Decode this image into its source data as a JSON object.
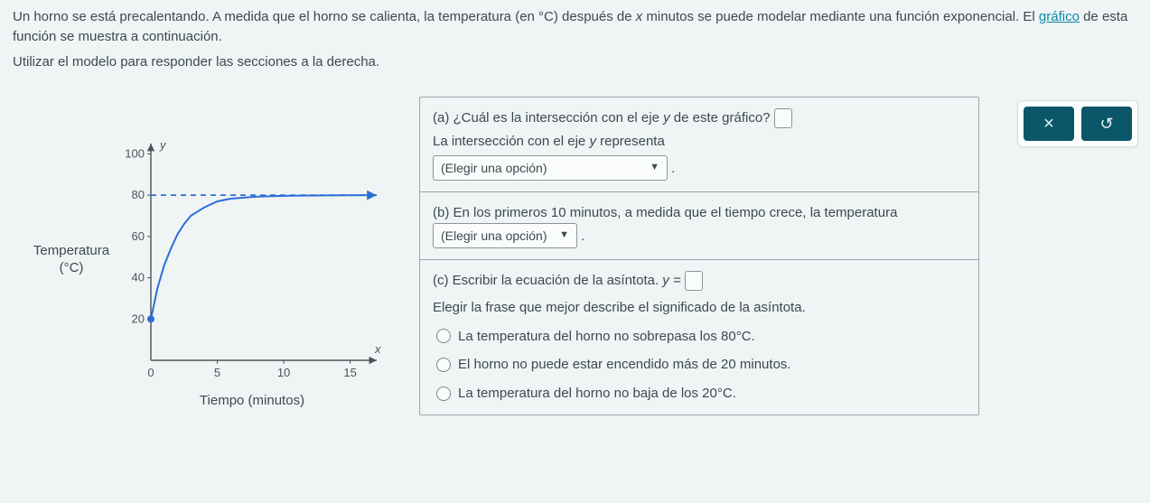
{
  "intro": {
    "line1_pre": "Un horno se está precalentando. A medida que el horno se calienta, la temperatura (en °C) después de ",
    "varx": "x",
    "line1_post": " minutos se puede modelar mediante una función exponencial. El ",
    "link_text": "gráfico",
    "line1_end": " de esta función se muestra a continuación.",
    "line2": "Utilizar el modelo para responder las secciones a la derecha."
  },
  "chart": {
    "ylabel_line1": "Temperatura",
    "ylabel_line2": "(°C)",
    "xlabel": "Tiempo (minutos)",
    "y_axis_letter": "y",
    "x_axis_letter": "x",
    "xlim": [
      0,
      17
    ],
    "ylim": [
      0,
      105
    ],
    "xticks": [
      0,
      5,
      10,
      15
    ],
    "yticks": [
      20,
      40,
      60,
      80,
      100
    ],
    "asymptote_y": 80,
    "asymptote_color": "#2b6fd6",
    "asymptote_dash": "6 5",
    "axis_color": "#4a5558",
    "tick_fontsize": 13,
    "curve_color": "#2b6fd6",
    "curve_width": 2,
    "start_marker_color": "#2b6fd6",
    "curve_points": [
      [
        0,
        20
      ],
      [
        0.5,
        35
      ],
      [
        1,
        46
      ],
      [
        1.5,
        54
      ],
      [
        2,
        61
      ],
      [
        2.5,
        66
      ],
      [
        3,
        70
      ],
      [
        4,
        74
      ],
      [
        5,
        77
      ],
      [
        6,
        78.3
      ],
      [
        8,
        79.3
      ],
      [
        10,
        79.7
      ],
      [
        12,
        79.85
      ],
      [
        15,
        79.95
      ],
      [
        17,
        80
      ]
    ]
  },
  "qa": {
    "a": {
      "q": "(a) ¿Cuál es la intersección con el eje ",
      "yvar": "y",
      "q_end": " de este gráfico? ",
      "sub_pre": "La intersección con el eje ",
      "sub_post": " representa",
      "dd_label": "(Elegir una opción)"
    },
    "b": {
      "text_pre": "(b) En los primeros 10 minutos, a medida que el tiempo crece, la temperatura ",
      "dd_label": "(Elegir una opción)"
    },
    "c": {
      "line1_pre": "(c) Escribir la ecuación de la asíntota. ",
      "eq_lhs": "y = ",
      "line2": "Elegir la frase que mejor describe el significado de la asíntota.",
      "opt1": "La temperatura del horno no sobrepasa los 80°C.",
      "opt2": "El horno no puede estar encendido más de 20 minutos.",
      "opt3": "La temperatura del horno no baja de los 20°C."
    }
  },
  "buttons": {
    "clear": "×",
    "reset": "↺"
  }
}
